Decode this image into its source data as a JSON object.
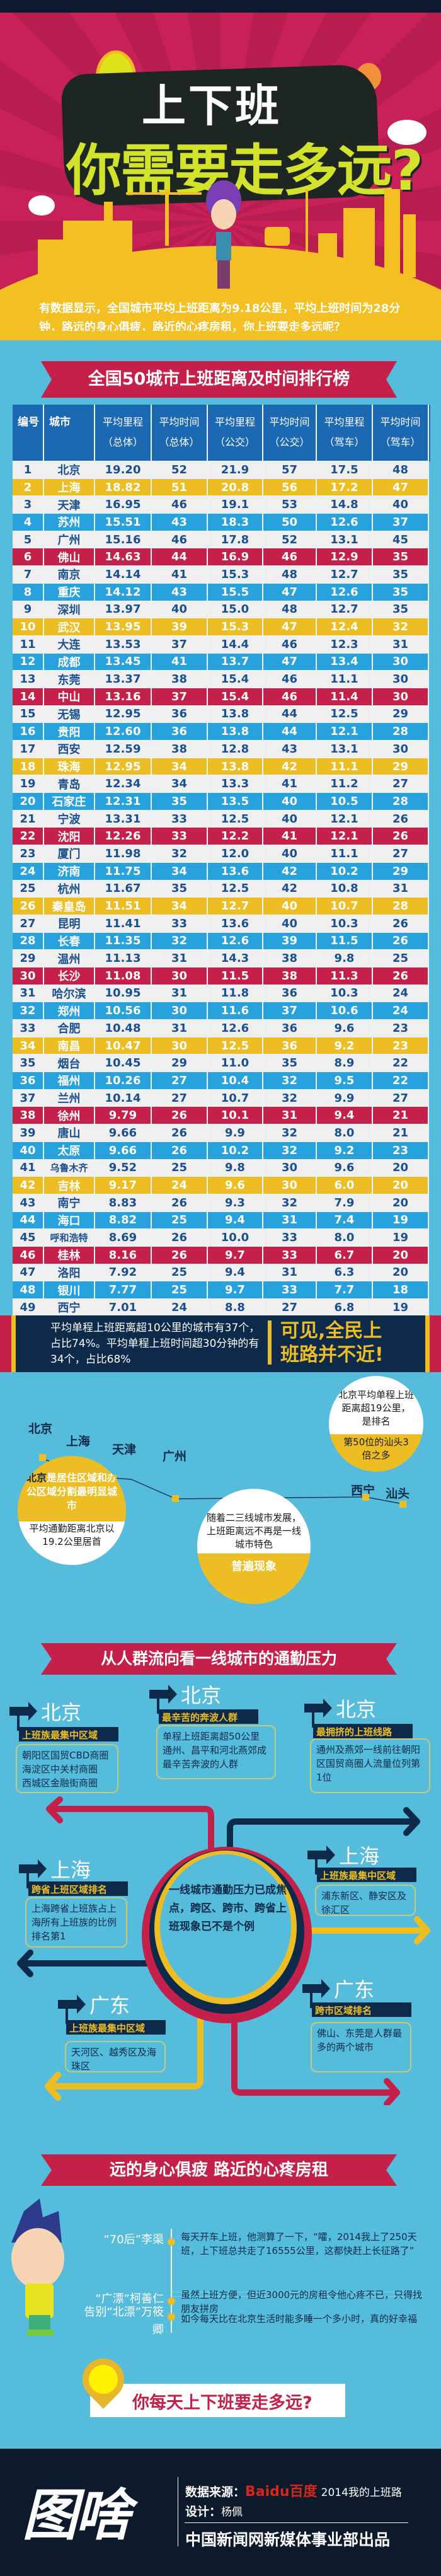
{
  "hero": {
    "title_line1": "上下班",
    "title_line2": "你需要走多远?",
    "intro": "有数据显示，全国城市平均上班距离为9.18公里，平均上班时间为28分钟，路远的身心俱疲，路近的心疼房租，你上班要走多远呢？"
  },
  "ranking": {
    "ribbon": "全国50城市上班距离及时间排行榜",
    "headers": [
      {
        "l1": "编号",
        "l2": ""
      },
      {
        "l1": "城市",
        "l2": ""
      },
      {
        "l1": "平均里程",
        "l2": "（总体）"
      },
      {
        "l1": "平均时间",
        "l2": "（总体）"
      },
      {
        "l1": "平均里程",
        "l2": "（公交）"
      },
      {
        "l1": "平均时间",
        "l2": "（公交）"
      },
      {
        "l1": "平均里程",
        "l2": "（驾车）"
      },
      {
        "l1": "平均时间",
        "l2": "（驾车）"
      }
    ],
    "row_colors": {
      "plain": "#efefef",
      "blue": "#27a2dd",
      "yellow": "#edbd24",
      "red": "#c4204a",
      "text_dark": "#1a4f90"
    },
    "rows": [
      [
        "1",
        "北京",
        "19.20",
        "52",
        "21.9",
        "57",
        "17.5",
        "48"
      ],
      [
        "2",
        "上海",
        "18.82",
        "51",
        "20.8",
        "56",
        "17.2",
        "47"
      ],
      [
        "3",
        "天津",
        "16.95",
        "46",
        "19.1",
        "53",
        "14.8",
        "40"
      ],
      [
        "4",
        "苏州",
        "15.51",
        "43",
        "18.3",
        "50",
        "12.6",
        "37"
      ],
      [
        "5",
        "广州",
        "15.16",
        "46",
        "17.8",
        "52",
        "13.1",
        "45"
      ],
      [
        "6",
        "佛山",
        "14.63",
        "44",
        "16.9",
        "46",
        "12.9",
        "35"
      ],
      [
        "7",
        "南京",
        "14.14",
        "41",
        "15.3",
        "48",
        "12.7",
        "35"
      ],
      [
        "8",
        "重庆",
        "14.12",
        "43",
        "15.5",
        "47",
        "12.6",
        "35"
      ],
      [
        "9",
        "深圳",
        "13.97",
        "40",
        "15.0",
        "48",
        "12.7",
        "35"
      ],
      [
        "10",
        "武汉",
        "13.95",
        "39",
        "15.3",
        "47",
        "12.4",
        "32"
      ],
      [
        "11",
        "大连",
        "13.53",
        "37",
        "14.4",
        "46",
        "12.3",
        "31"
      ],
      [
        "12",
        "成都",
        "13.45",
        "41",
        "13.7",
        "47",
        "13.4",
        "30"
      ],
      [
        "13",
        "东莞",
        "13.37",
        "38",
        "15.4",
        "46",
        "11.1",
        "30"
      ],
      [
        "14",
        "中山",
        "13.16",
        "37",
        "15.4",
        "46",
        "11.4",
        "30"
      ],
      [
        "15",
        "无锡",
        "12.95",
        "36",
        "13.8",
        "44",
        "12.5",
        "29"
      ],
      [
        "16",
        "贵阳",
        "12.60",
        "36",
        "13.8",
        "44",
        "12.1",
        "28"
      ],
      [
        "17",
        "西安",
        "12.59",
        "38",
        "12.8",
        "43",
        "13.1",
        "30"
      ],
      [
        "18",
        "珠海",
        "12.95",
        "34",
        "13.8",
        "42",
        "11.1",
        "29"
      ],
      [
        "19",
        "青岛",
        "12.34",
        "34",
        "13.3",
        "41",
        "11.2",
        "27"
      ],
      [
        "20",
        "石家庄",
        "12.31",
        "35",
        "13.5",
        "40",
        "10.5",
        "28"
      ],
      [
        "21",
        "宁波",
        "13.31",
        "33",
        "12.5",
        "40",
        "12.1",
        "26"
      ],
      [
        "22",
        "沈阳",
        "12.26",
        "33",
        "12.2",
        "41",
        "12.1",
        "26"
      ],
      [
        "23",
        "厦门",
        "11.98",
        "32",
        "12.0",
        "40",
        "11.1",
        "27"
      ],
      [
        "24",
        "济南",
        "11.75",
        "34",
        "13.6",
        "42",
        "10.2",
        "29"
      ],
      [
        "25",
        "杭州",
        "11.67",
        "35",
        "12.5",
        "42",
        "10.8",
        "31"
      ],
      [
        "26",
        "秦皇岛",
        "11.51",
        "34",
        "12.7",
        "40",
        "10.7",
        "28"
      ],
      [
        "27",
        "昆明",
        "11.41",
        "33",
        "13.6",
        "40",
        "10.3",
        "26"
      ],
      [
        "28",
        "长春",
        "11.35",
        "32",
        "12.6",
        "39",
        "11.5",
        "26"
      ],
      [
        "29",
        "温州",
        "11.13",
        "31",
        "14.3",
        "38",
        "9.8",
        "25"
      ],
      [
        "30",
        "长沙",
        "11.08",
        "30",
        "11.5",
        "38",
        "11.3",
        "26"
      ],
      [
        "31",
        "哈尔滨",
        "10.95",
        "31",
        "11.8",
        "36",
        "10.3",
        "24"
      ],
      [
        "32",
        "郑州",
        "10.56",
        "30",
        "11.6",
        "37",
        "10.6",
        "24"
      ],
      [
        "33",
        "合肥",
        "10.48",
        "31",
        "12.6",
        "36",
        "9.6",
        "23"
      ],
      [
        "34",
        "南昌",
        "10.47",
        "30",
        "12.5",
        "36",
        "9.2",
        "23"
      ],
      [
        "35",
        "烟台",
        "10.45",
        "29",
        "11.0",
        "35",
        "8.9",
        "22"
      ],
      [
        "36",
        "福州",
        "10.26",
        "27",
        "10.4",
        "32",
        "9.5",
        "22"
      ],
      [
        "37",
        "兰州",
        "10.14",
        "27",
        "10.7",
        "32",
        "9.9",
        "27"
      ],
      [
        "38",
        "徐州",
        "9.79",
        "26",
        "10.1",
        "31",
        "9.4",
        "21"
      ],
      [
        "39",
        "唐山",
        "9.66",
        "26",
        "9.9",
        "32",
        "8.0",
        "21"
      ],
      [
        "40",
        "太原",
        "9.66",
        "26",
        "10.2",
        "32",
        "9.2",
        "23"
      ],
      [
        "41",
        "乌鲁木齐",
        "9.52",
        "25",
        "9.8",
        "30",
        "9.6",
        "20"
      ],
      [
        "42",
        "吉林",
        "9.17",
        "24",
        "9.6",
        "30",
        "6.0",
        "20"
      ],
      [
        "43",
        "南宁",
        "8.83",
        "26",
        "9.3",
        "32",
        "7.9",
        "20"
      ],
      [
        "44",
        "海口",
        "8.82",
        "25",
        "9.4",
        "31",
        "7.4",
        "19"
      ],
      [
        "45",
        "呼和浩特",
        "8.69",
        "26",
        "10.0",
        "33",
        "8.0",
        "19"
      ],
      [
        "46",
        "桂林",
        "8.16",
        "26",
        "9.7",
        "33",
        "6.7",
        "20"
      ],
      [
        "47",
        "洛阳",
        "7.92",
        "25",
        "9.4",
        "31",
        "6.3",
        "20"
      ],
      [
        "48",
        "银川",
        "7.77",
        "25",
        "9.7",
        "33",
        "7.7",
        "18"
      ],
      [
        "49",
        "西宁",
        "7.01",
        "24",
        "8.8",
        "27",
        "6.8",
        "19"
      ],
      [
        "50",
        "汕头",
        "6.35",
        "22",
        "9.2",
        "29",
        "5.7",
        "16"
      ]
    ]
  },
  "summary": {
    "left": "平均单程上班距离超10公里的城市有37个，占比74%。平均单程上班时间超30分钟的有34个，占比68%",
    "right": "可见,全民上班路并不近!"
  },
  "route": {
    "cities": [
      "北京",
      "上海",
      "天津",
      "广州",
      "西宁",
      "汕头"
    ],
    "bubble_left": {
      "top_a": "北京",
      "top_b": "是居住区域和办公区域分割最明显城市",
      "bottom": "平均通勤距离北京以19.2公里居首"
    },
    "bubble_middle": {
      "top": "随着二三线城市发展，上班距离远不再是一线城市特色",
      "bottom": "普遍现象"
    },
    "bubble_right": {
      "top": "北京平均单程上班距离超19公里，是排名",
      "bottom": "第50位的汕头3倍之多"
    }
  },
  "flow": {
    "ribbon": "从人群流向看一线城市的通勤压力",
    "center": "一线城市通勤压力已成焦点，跨区、跨市、跨省上班现象已不是个例",
    "cards": [
      {
        "city": "北京",
        "tag": "上班族最集中区域",
        "text": "朝阳区国贸CBD商圈\n海淀区中关村商圈\n西城区金融街商圈"
      },
      {
        "city": "北京",
        "tag": "最辛苦的奔波人群",
        "text": "单程上班距离超50公里\n通州、昌平和河北燕郊成\n最辛苦奔波的人群"
      },
      {
        "city": "北京",
        "tag": "最拥挤的上班线路",
        "text": "通州及燕郊一线前往朝阳区国贸商圈人流量位列第1位"
      },
      {
        "city": "上海",
        "tag": "跨省上班区域排名",
        "text": "上海跨省上班族占上海所有上班族的比例排名第1"
      },
      {
        "city": "上海",
        "tag": "上班族最集中区域",
        "text": "浦东新区、静安区及徐汇区"
      },
      {
        "city": "广东",
        "tag": "上班族最集中区域",
        "text": "天河区、越秀区及海珠区"
      },
      {
        "city": "广东",
        "tag": "跨市区域排名",
        "text": "佛山、东莞是人群最多的两个城市"
      }
    ]
  },
  "people": {
    "ribbon": "远的身心俱疲 路近的心疼房租",
    "items": [
      {
        "name": "“70后”李渠",
        "quote": "每天开车上班，他测算了一下，“嚯，2014我上了250天班，上下班总共走了16555公里，这都快赶上长征路了”"
      },
      {
        "name": "“广漂”柯善仁",
        "quote": "虽然上班方便，但近3000元的房租令他心疼不已，只得找朋友拼房"
      },
      {
        "name": "告别“北漂”万筱卿",
        "quote": "如今每天比在北京生活时能多睡一个多小时，真的好幸福"
      }
    ],
    "question": "你每天上下班要走多远?"
  },
  "footer": {
    "logo": "图啥",
    "source_label": "数据来源：",
    "source_brand": "Baidu百度",
    "source_text": "2014我的上班路",
    "design_label": "设计：",
    "designer": "杨佩",
    "producer": "中国新闻网新媒体事业部出品"
  }
}
